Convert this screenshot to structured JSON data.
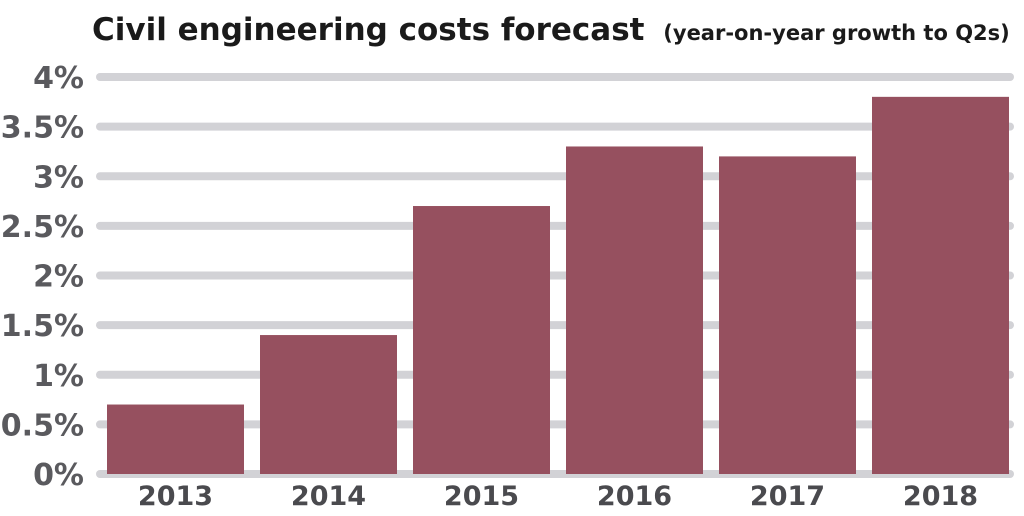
{
  "chart_data": {
    "type": "bar",
    "title": "Civil engineering costs forecast",
    "subtitle": "(year-on-year growth to Q2s)",
    "xlabel": "",
    "ylabel": "",
    "categories": [
      "2013",
      "2014",
      "2015",
      "2016",
      "2017",
      "2018"
    ],
    "values": [
      0.7,
      1.4,
      2.7,
      3.3,
      3.2,
      3.8
    ],
    "unit": "%",
    "ylim": [
      0,
      4
    ],
    "yticks": [
      0,
      0.5,
      1,
      1.5,
      2,
      2.5,
      3,
      3.5,
      4
    ],
    "ytick_labels": [
      "0%",
      "0.5%",
      "1%",
      "1.5%",
      "2%",
      "2.5%",
      "3%",
      "3.5%",
      "4%"
    ],
    "grid": true,
    "legend": "none",
    "colors": {
      "bar": "#96505f",
      "grid": "#d2d2d6",
      "tick_text": "#5a5a5e"
    }
  }
}
